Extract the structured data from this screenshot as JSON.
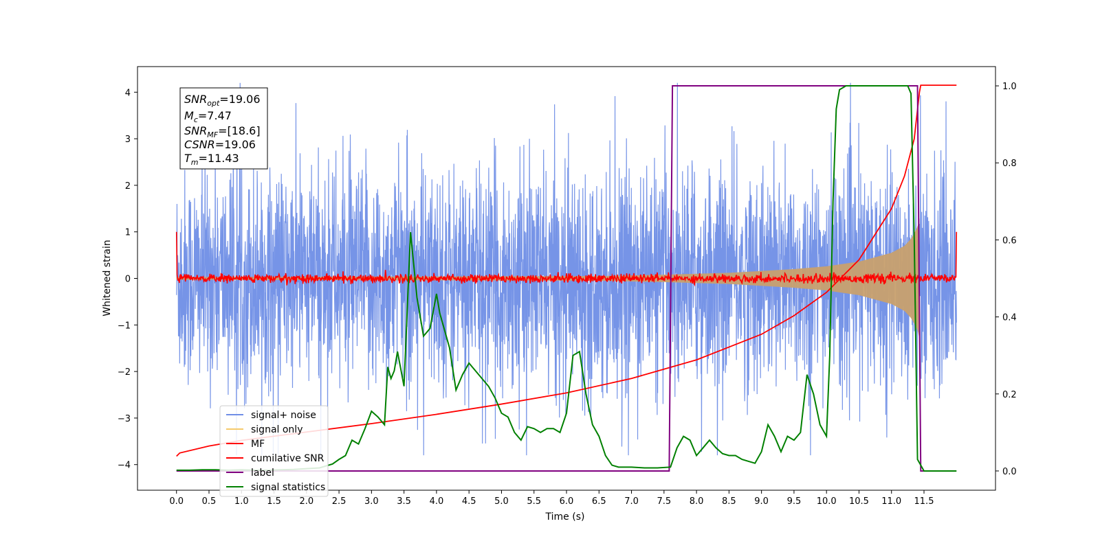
{
  "chart_data": {
    "type": "line",
    "xlabel": "Time (s)",
    "ylabel": "Whitened strain",
    "xlim": [
      -0.6,
      12.6
    ],
    "ylim": [
      -4.55,
      4.55
    ],
    "ylim_right": [
      -0.05,
      1.05
    ],
    "x_ticks": [
      0.0,
      0.5,
      1.0,
      1.5,
      2.0,
      2.5,
      3.0,
      3.5,
      4.0,
      4.5,
      5.0,
      5.5,
      6.0,
      6.5,
      7.0,
      7.5,
      8.0,
      8.5,
      9.0,
      9.5,
      10.0,
      10.5,
      11.0,
      11.5
    ],
    "x_tick_labels": [
      "0.0",
      "0.5",
      "1.0",
      "1.5",
      "2.0",
      "2.5",
      "3.0",
      "3.5",
      "4.0",
      "4.5",
      "5.0",
      "5.5",
      "6.0",
      "6.5",
      "7.0",
      "7.5",
      "8.0",
      "8.5",
      "9.0",
      "9.5",
      "10.0",
      "10.5",
      "11.0",
      "11.5"
    ],
    "y_ticks": [
      -4,
      -3,
      -2,
      -1,
      0,
      1,
      2,
      3,
      4
    ],
    "y_tick_labels": [
      "−4",
      "−3",
      "−2",
      "−1",
      "0",
      "1",
      "2",
      "3",
      "4"
    ],
    "y2_ticks": [
      0.0,
      0.2,
      0.4,
      0.6,
      0.8,
      1.0
    ],
    "y2_tick_labels": [
      "0.0",
      "0.2",
      "0.4",
      "0.6",
      "0.8",
      "1.0"
    ],
    "legend_position": "lower-left",
    "legend": [
      {
        "name": "signal+ noise",
        "color": "#6f8ee6"
      },
      {
        "name": "signal only",
        "color": "#f5c96b"
      },
      {
        "name": "MF",
        "color": "#ff0000"
      },
      {
        "name": "cumilative SNR",
        "color": "#ff0000"
      },
      {
        "name": "label",
        "color": "#800080"
      },
      {
        "name": "signal statistics",
        "color": "#008000"
      }
    ],
    "annotations": {
      "snr_opt": {
        "base": "SNR",
        "sub": "opt",
        "value": "=19.06"
      },
      "mc": {
        "base": "M",
        "sub": "c",
        "value": "=7.47"
      },
      "snr_mf": {
        "base": "SNR",
        "sub": "MF",
        "value": "=[18.6]"
      },
      "csnr": {
        "base": "CSNR",
        "sub": "",
        "value": "=19.06"
      },
      "tm": {
        "base": "T",
        "sub": "m",
        "value": "=11.43"
      }
    },
    "series": [
      {
        "name": "signal+ noise",
        "axis": "left",
        "color": "#6f8ee6",
        "x_range": [
          0.0,
          12.0
        ],
        "amplitude_envelope": 2.6,
        "peak_range": [
          -3.8,
          4.2
        ]
      },
      {
        "name": "signal only",
        "axis": "left",
        "color": "#c8a06e",
        "envelope_x": [
          0.0,
          6.5,
          7.5,
          8.5,
          9.5,
          10.0,
          10.5,
          11.0,
          11.2,
          11.3,
          11.4,
          11.43
        ],
        "envelope_y": [
          0.03,
          0.05,
          0.08,
          0.12,
          0.2,
          0.26,
          0.36,
          0.55,
          0.7,
          0.85,
          1.1,
          1.3
        ]
      },
      {
        "name": "MF",
        "axis": "left",
        "color": "#ff0000",
        "x_range": [
          0.0,
          12.0
        ],
        "noise_amplitude": 0.08,
        "start_value": 1.0,
        "end_value": 1.0
      },
      {
        "name": "cumilative SNR",
        "axis": "left",
        "color": "#ff0000",
        "x": [
          0.0,
          0.05,
          0.5,
          1.0,
          2.0,
          3.0,
          4.0,
          5.0,
          6.0,
          7.0,
          8.0,
          9.0,
          9.5,
          10.0,
          10.5,
          11.0,
          11.2,
          11.35,
          11.43,
          11.45,
          12.0
        ],
        "y": [
          -3.82,
          -3.75,
          -3.6,
          -3.48,
          -3.3,
          -3.12,
          -2.92,
          -2.7,
          -2.46,
          -2.15,
          -1.75,
          -1.2,
          -0.8,
          -0.3,
          0.4,
          1.5,
          2.2,
          3.0,
          4.0,
          4.15,
          4.15
        ]
      },
      {
        "name": "label",
        "axis": "right",
        "color": "#800080",
        "x": [
          0.0,
          7.58,
          7.63,
          11.4,
          11.45,
          11.5
        ],
        "y": [
          0.0,
          0.0,
          1.0,
          1.0,
          0.0,
          0.0
        ]
      },
      {
        "name": "signal statistics",
        "axis": "right",
        "color": "#008000",
        "x": [
          0.0,
          0.2,
          0.4,
          0.6,
          0.8,
          1.0,
          1.2,
          1.4,
          1.6,
          1.8,
          2.0,
          2.2,
          2.4,
          2.5,
          2.6,
          2.7,
          2.8,
          2.9,
          3.0,
          3.1,
          3.2,
          3.25,
          3.3,
          3.35,
          3.4,
          3.5,
          3.6,
          3.7,
          3.8,
          3.9,
          4.0,
          4.05,
          4.1,
          4.2,
          4.3,
          4.4,
          4.5,
          4.6,
          4.7,
          4.8,
          4.9,
          5.0,
          5.1,
          5.2,
          5.3,
          5.4,
          5.5,
          5.6,
          5.7,
          5.8,
          5.9,
          6.0,
          6.1,
          6.2,
          6.3,
          6.4,
          6.5,
          6.6,
          6.7,
          6.8,
          7.0,
          7.2,
          7.4,
          7.6,
          7.7,
          7.8,
          7.9,
          8.0,
          8.1,
          8.2,
          8.3,
          8.4,
          8.5,
          8.6,
          8.7,
          8.8,
          8.9,
          9.0,
          9.1,
          9.2,
          9.3,
          9.4,
          9.5,
          9.6,
          9.7,
          9.8,
          9.9,
          10.0,
          10.05,
          10.1,
          10.15,
          10.2,
          10.3,
          10.4,
          10.6,
          10.8,
          11.0,
          11.2,
          11.25,
          11.3,
          11.35,
          11.4,
          11.5,
          11.7,
          12.0
        ],
        "y": [
          0.002,
          0.002,
          0.003,
          0.003,
          0.002,
          0.003,
          0.002,
          0.002,
          0.003,
          0.004,
          0.006,
          0.008,
          0.018,
          0.03,
          0.04,
          0.08,
          0.07,
          0.11,
          0.155,
          0.14,
          0.12,
          0.27,
          0.24,
          0.26,
          0.31,
          0.22,
          0.62,
          0.45,
          0.35,
          0.37,
          0.46,
          0.41,
          0.38,
          0.32,
          0.21,
          0.25,
          0.28,
          0.26,
          0.24,
          0.22,
          0.19,
          0.15,
          0.14,
          0.1,
          0.08,
          0.115,
          0.11,
          0.1,
          0.11,
          0.11,
          0.1,
          0.15,
          0.3,
          0.31,
          0.2,
          0.12,
          0.09,
          0.04,
          0.015,
          0.01,
          0.01,
          0.008,
          0.008,
          0.01,
          0.06,
          0.09,
          0.08,
          0.04,
          0.06,
          0.08,
          0.06,
          0.045,
          0.04,
          0.04,
          0.03,
          0.025,
          0.02,
          0.05,
          0.12,
          0.09,
          0.05,
          0.09,
          0.08,
          0.1,
          0.25,
          0.2,
          0.12,
          0.09,
          0.3,
          0.7,
          0.94,
          0.99,
          1.0,
          1.0,
          1.0,
          1.0,
          1.0,
          1.0,
          1.0,
          0.98,
          0.6,
          0.03,
          0.0,
          0.0,
          0.0
        ]
      }
    ]
  }
}
